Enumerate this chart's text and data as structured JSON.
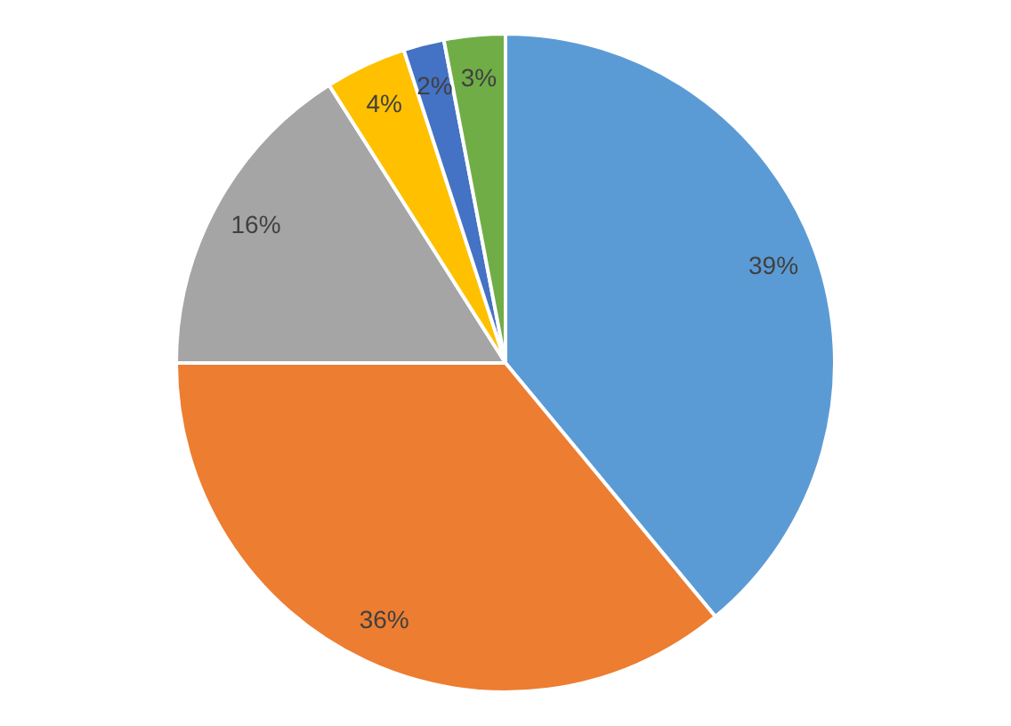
{
  "chart_data": {
    "type": "pie",
    "categories": [
      null,
      null,
      null,
      null,
      null,
      null
    ],
    "values": [
      39,
      36,
      16,
      4,
      2,
      3
    ],
    "colors": [
      "#5b9bd5",
      "#ed7d31",
      "#a5a5a5",
      "#ffc000",
      "#4472c4",
      "#70ad47"
    ],
    "value_labels": [
      "39%",
      "36%",
      "16%",
      "4%",
      "2%",
      "3%"
    ]
  }
}
